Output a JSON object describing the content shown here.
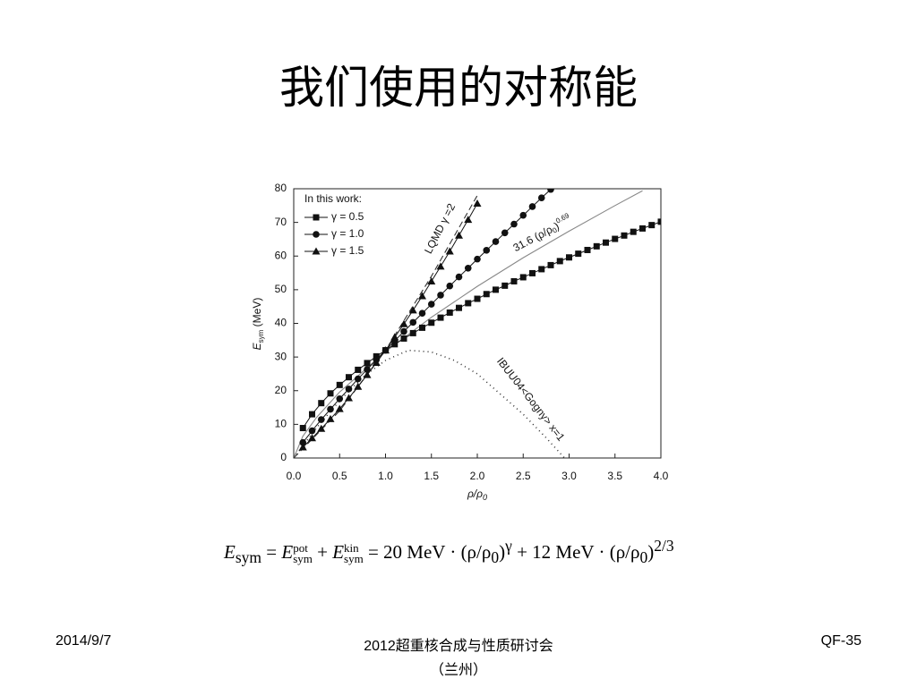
{
  "slide": {
    "title": "我们使用的对称能",
    "date": "2014/9/7",
    "footer": "2012超重核合成与性质研讨会",
    "footer_sub": "（兰州）",
    "page": "QF-35",
    "formula": [
      "E",
      "sym",
      " = ",
      "E",
      "sym",
      "pot",
      " + ",
      "E",
      "sym",
      "kin",
      " = 20 MeV · (ρ/ρ",
      "0",
      ")",
      "γ",
      " + 12 MeV · (ρ/ρ",
      "0",
      ")",
      "2/3"
    ]
  },
  "chart_data": {
    "type": "line",
    "x_label": [
      "ρ/ρ",
      "0"
    ],
    "y_label": [
      "E",
      "sym",
      " (MeV)"
    ],
    "legend_title": "In this work:",
    "xlim": [
      0,
      4
    ],
    "ylim": [
      0,
      80
    ],
    "xticks": [
      {
        "value": 0,
        "label": "0.0"
      },
      0.5,
      {
        "value": 1,
        "label": "1.0"
      },
      1.5,
      {
        "value": 2,
        "label": "2.0"
      },
      2.5,
      {
        "value": 3,
        "label": "3.0"
      },
      3.5,
      {
        "value": 4,
        "label": "4.0"
      }
    ],
    "yticks": [
      0,
      10,
      20,
      30,
      40,
      50,
      60,
      70,
      80
    ],
    "series": [
      {
        "name": "γ = 0.5",
        "color": "#111111",
        "marker": "square",
        "x": [
          0.1,
          0.2,
          0.3,
          0.4,
          0.5,
          0.6,
          0.7,
          0.8,
          0.9,
          1.0,
          1.1,
          1.2,
          1.3,
          1.4,
          1.5,
          1.6,
          1.7,
          1.8,
          1.9,
          2.0,
          2.1,
          2.2,
          2.3,
          2.4,
          2.5,
          2.6,
          2.7,
          2.8,
          2.9,
          3.0,
          3.1,
          3.2,
          3.3,
          3.4,
          3.5,
          3.6,
          3.7,
          3.8,
          3.9,
          4.0
        ],
        "values": [
          8.9,
          13.0,
          16.3,
          19.2,
          21.7,
          24.0,
          26.2,
          28.2,
          30.2,
          32.0,
          33.8,
          35.5,
          37.1,
          38.7,
          40.2,
          41.7,
          43.2,
          44.6,
          46.0,
          47.3,
          48.7,
          50.0,
          51.2,
          52.5,
          53.7,
          54.9,
          56.1,
          57.3,
          58.5,
          59.6,
          60.7,
          61.8,
          62.9,
          64.0,
          65.1,
          66.1,
          67.2,
          68.2,
          69.2,
          70.2
        ]
      },
      {
        "name": "γ = 1.0",
        "color": "#111111",
        "marker": "circle",
        "x": [
          0.1,
          0.2,
          0.3,
          0.4,
          0.5,
          0.6,
          0.7,
          0.8,
          0.9,
          1.0,
          1.1,
          1.2,
          1.3,
          1.4,
          1.5,
          1.6,
          1.7,
          1.8,
          1.9,
          2.0,
          2.1,
          2.2,
          2.3,
          2.4,
          2.5,
          2.6,
          2.7,
          2.8
        ],
        "values": [
          4.6,
          8.1,
          11.4,
          14.5,
          17.6,
          20.5,
          23.5,
          26.3,
          29.2,
          32.0,
          34.8,
          37.6,
          40.3,
          43.0,
          45.7,
          48.4,
          51.1,
          53.8,
          56.4,
          59.1,
          61.7,
          64.3,
          66.9,
          69.5,
          72.1,
          74.7,
          77.3,
          79.8
        ]
      },
      {
        "name": "γ = 1.5",
        "color": "#111111",
        "marker": "triangle",
        "x": [
          0.1,
          0.2,
          0.3,
          0.4,
          0.5,
          0.6,
          0.7,
          0.8,
          0.9,
          1.0,
          1.1,
          1.2,
          1.3,
          1.4,
          1.5,
          1.6,
          1.7,
          1.8,
          1.9,
          2.0
        ],
        "values": [
          3.2,
          5.9,
          8.7,
          11.6,
          14.6,
          17.8,
          21.2,
          24.7,
          28.3,
          32.0,
          35.9,
          39.8,
          43.9,
          48.1,
          52.5,
          56.9,
          61.4,
          66.1,
          70.8,
          75.6
        ]
      }
    ],
    "curves": [
      {
        "label": [
          "LQMD γ =2"
        ],
        "color": "#333333",
        "style": "dashed",
        "x": [
          0,
          0.5,
          1,
          1.5,
          2.0
        ],
        "values": [
          0,
          14,
          32,
          54,
          78
        ]
      },
      {
        "label": [
          "31.6 (ρ/ρ",
          "0",
          ")",
          "0.69"
        ],
        "color": "#888888",
        "style": "solid",
        "x": [
          0,
          0.1,
          0.25,
          0.5,
          1,
          1.5,
          2,
          2.5,
          3,
          3.5,
          3.8
        ],
        "values": [
          0,
          6.5,
          12.1,
          19.6,
          31.6,
          41.8,
          51.0,
          59.5,
          67.4,
          75.0,
          79.4
        ]
      },
      {
        "label": [
          "IBUU04<Gogny> x=1"
        ],
        "color": "#333333",
        "style": "dotted",
        "x": [
          0,
          0.25,
          0.5,
          0.75,
          1,
          1.25,
          1.5,
          1.75,
          2,
          2.25,
          2.5,
          2.75,
          2.95
        ],
        "values": [
          0,
          9,
          17,
          24,
          29,
          32,
          31.5,
          29,
          25,
          19,
          13,
          6,
          0
        ]
      }
    ]
  }
}
